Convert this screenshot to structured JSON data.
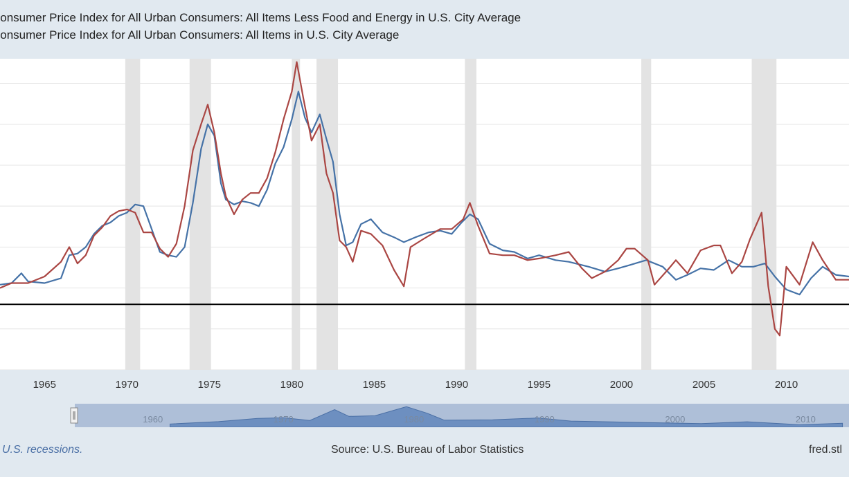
{
  "legend": {
    "items": [
      {
        "label": "Consumer Price Index for All Urban Consumers: All Items Less Food and Energy in U.S. City Average",
        "color": "#4572a7"
      },
      {
        "label": "Consumer Price Index for All Urban Consumers: All Items in U.S. City Average",
        "color": "#aa4643"
      }
    ]
  },
  "footer": {
    "recessions_note": "U.S. recessions.",
    "source": "Source: U.S. Bureau of Labor Statistics",
    "site": "fred.stl"
  },
  "navigator": {
    "labels": [
      "1960",
      "1970",
      "1980",
      "1990",
      "2000",
      "2010"
    ]
  },
  "chart_data": {
    "type": "line",
    "x_ticks": [
      "1965",
      "1970",
      "1975",
      "1980",
      "1985",
      "1990",
      "1995",
      "2000",
      "2005",
      "2010"
    ],
    "xlim": [
      1962.3,
      2013.8
    ],
    "ylim": [
      -4,
      15
    ],
    "recessions": [
      [
        1969.9,
        1970.8
      ],
      [
        1973.8,
        1975.1
      ],
      [
        1980.0,
        1980.5
      ],
      [
        1981.5,
        1982.8
      ],
      [
        1990.5,
        1991.2
      ],
      [
        2001.2,
        2001.8
      ],
      [
        2007.9,
        2009.4
      ]
    ],
    "series": [
      {
        "name": "Consumer Price Index for All Urban Consumers: All Items Less Food and Energy in U.S. City Average",
        "color": "#4572a7",
        "points": [
          [
            1962.3,
            1.2
          ],
          [
            1963,
            1.3
          ],
          [
            1963.6,
            1.9
          ],
          [
            1964,
            1.4
          ],
          [
            1965,
            1.3
          ],
          [
            1966,
            1.6
          ],
          [
            1966.5,
            3.0
          ],
          [
            1967,
            3.1
          ],
          [
            1967.5,
            3.5
          ],
          [
            1968,
            4.3
          ],
          [
            1968.5,
            4.8
          ],
          [
            1969,
            5.0
          ],
          [
            1969.5,
            5.4
          ],
          [
            1970,
            5.6
          ],
          [
            1970.5,
            6.1
          ],
          [
            1971,
            6.0
          ],
          [
            1971.5,
            4.6
          ],
          [
            1972,
            3.2
          ],
          [
            1972.5,
            3.0
          ],
          [
            1973,
            2.9
          ],
          [
            1973.5,
            3.5
          ],
          [
            1974,
            6.2
          ],
          [
            1974.5,
            9.5
          ],
          [
            1974.9,
            11.0
          ],
          [
            1975.3,
            10.3
          ],
          [
            1975.7,
            7.4
          ],
          [
            1976,
            6.4
          ],
          [
            1976.5,
            6.1
          ],
          [
            1977,
            6.3
          ],
          [
            1977.5,
            6.2
          ],
          [
            1978,
            6.0
          ],
          [
            1978.5,
            7.0
          ],
          [
            1979,
            8.6
          ],
          [
            1979.5,
            9.6
          ],
          [
            1980,
            11.3
          ],
          [
            1980.4,
            13.0
          ],
          [
            1980.8,
            11.4
          ],
          [
            1981.2,
            10.5
          ],
          [
            1981.7,
            11.6
          ],
          [
            1982.1,
            10.1
          ],
          [
            1982.5,
            8.7
          ],
          [
            1982.9,
            5.5
          ],
          [
            1983.3,
            3.6
          ],
          [
            1983.7,
            3.8
          ],
          [
            1984.2,
            4.9
          ],
          [
            1984.8,
            5.2
          ],
          [
            1985.5,
            4.4
          ],
          [
            1986.2,
            4.1
          ],
          [
            1986.8,
            3.8
          ],
          [
            1987.5,
            4.1
          ],
          [
            1988.3,
            4.4
          ],
          [
            1989,
            4.5
          ],
          [
            1989.7,
            4.3
          ],
          [
            1990.3,
            5.0
          ],
          [
            1990.8,
            5.5
          ],
          [
            1991.3,
            5.2
          ],
          [
            1992,
            3.7
          ],
          [
            1992.8,
            3.3
          ],
          [
            1993.5,
            3.2
          ],
          [
            1994.3,
            2.8
          ],
          [
            1995,
            3.0
          ],
          [
            1996,
            2.7
          ],
          [
            1996.8,
            2.6
          ],
          [
            1998,
            2.3
          ],
          [
            1999,
            2.0
          ],
          [
            1999.8,
            2.2
          ],
          [
            2000.5,
            2.4
          ],
          [
            2001.5,
            2.7
          ],
          [
            2002.5,
            2.3
          ],
          [
            2003.3,
            1.5
          ],
          [
            2004,
            1.8
          ],
          [
            2004.8,
            2.2
          ],
          [
            2005.6,
            2.1
          ],
          [
            2006.5,
            2.7
          ],
          [
            2007.3,
            2.3
          ],
          [
            2008,
            2.3
          ],
          [
            2008.7,
            2.5
          ],
          [
            2009.3,
            1.7
          ],
          [
            2010,
            0.9
          ],
          [
            2010.8,
            0.6
          ],
          [
            2011.5,
            1.6
          ],
          [
            2012.2,
            2.3
          ],
          [
            2013,
            1.8
          ],
          [
            2013.8,
            1.7
          ]
        ]
      },
      {
        "name": "Consumer Price Index for All Urban Consumers: All Items in U.S. City Average",
        "color": "#aa4643",
        "points": [
          [
            1962.3,
            1.0
          ],
          [
            1963,
            1.3
          ],
          [
            1964,
            1.3
          ],
          [
            1965,
            1.7
          ],
          [
            1966,
            2.6
          ],
          [
            1966.5,
            3.5
          ],
          [
            1967,
            2.5
          ],
          [
            1967.5,
            3.0
          ],
          [
            1968,
            4.2
          ],
          [
            1968.5,
            4.7
          ],
          [
            1969,
            5.4
          ],
          [
            1969.5,
            5.7
          ],
          [
            1970,
            5.8
          ],
          [
            1970.5,
            5.6
          ],
          [
            1971,
            4.4
          ],
          [
            1971.5,
            4.4
          ],
          [
            1972,
            3.4
          ],
          [
            1972.5,
            2.9
          ],
          [
            1973,
            3.7
          ],
          [
            1973.5,
            6.0
          ],
          [
            1974,
            9.4
          ],
          [
            1974.5,
            11.0
          ],
          [
            1974.9,
            12.2
          ],
          [
            1975.3,
            10.5
          ],
          [
            1975.7,
            8.0
          ],
          [
            1976,
            6.6
          ],
          [
            1976.5,
            5.5
          ],
          [
            1977,
            6.4
          ],
          [
            1977.5,
            6.8
          ],
          [
            1978,
            6.8
          ],
          [
            1978.5,
            7.7
          ],
          [
            1979,
            9.3
          ],
          [
            1979.5,
            11.3
          ],
          [
            1980,
            13.0
          ],
          [
            1980.3,
            14.8
          ],
          [
            1980.7,
            12.6
          ],
          [
            1981.2,
            10.0
          ],
          [
            1981.7,
            11.0
          ],
          [
            1982.1,
            8.0
          ],
          [
            1982.5,
            6.8
          ],
          [
            1982.9,
            3.9
          ],
          [
            1983.3,
            3.5
          ],
          [
            1983.7,
            2.6
          ],
          [
            1984.2,
            4.5
          ],
          [
            1984.8,
            4.3
          ],
          [
            1985.5,
            3.6
          ],
          [
            1986.2,
            2.1
          ],
          [
            1986.8,
            1.1
          ],
          [
            1987.2,
            3.5
          ],
          [
            1988,
            4.0
          ],
          [
            1989,
            4.6
          ],
          [
            1989.7,
            4.6
          ],
          [
            1990.4,
            5.2
          ],
          [
            1990.8,
            6.2
          ],
          [
            1991.3,
            4.8
          ],
          [
            1992,
            3.1
          ],
          [
            1992.8,
            3.0
          ],
          [
            1993.5,
            3.0
          ],
          [
            1994.3,
            2.7
          ],
          [
            1995,
            2.8
          ],
          [
            1996,
            3.0
          ],
          [
            1996.8,
            3.2
          ],
          [
            1997.6,
            2.2
          ],
          [
            1998.2,
            1.6
          ],
          [
            1999,
            2.0
          ],
          [
            1999.8,
            2.7
          ],
          [
            2000.3,
            3.4
          ],
          [
            2000.8,
            3.4
          ],
          [
            2001.6,
            2.7
          ],
          [
            2002,
            1.2
          ],
          [
            2002.8,
            2.1
          ],
          [
            2003.3,
            2.7
          ],
          [
            2004,
            1.9
          ],
          [
            2004.8,
            3.3
          ],
          [
            2005.6,
            3.6
          ],
          [
            2006,
            3.6
          ],
          [
            2006.7,
            1.9
          ],
          [
            2007.3,
            2.6
          ],
          [
            2007.8,
            4.0
          ],
          [
            2008.5,
            5.6
          ],
          [
            2008.9,
            1.1
          ],
          [
            2009.3,
            -1.5
          ],
          [
            2009.6,
            -1.9
          ],
          [
            2010,
            2.3
          ],
          [
            2010.8,
            1.2
          ],
          [
            2011.6,
            3.8
          ],
          [
            2012.2,
            2.7
          ],
          [
            2013,
            1.5
          ],
          [
            2013.8,
            1.5
          ]
        ]
      }
    ],
    "navigator_series": [
      [
        1962.3,
        1.2
      ],
      [
        1966,
        2.8
      ],
      [
        1969,
        5.0
      ],
      [
        1971,
        5.5
      ],
      [
        1973,
        3.6
      ],
      [
        1974.9,
        11.0
      ],
      [
        1976,
        6.4
      ],
      [
        1978,
        6.8
      ],
      [
        1980.4,
        13.0
      ],
      [
        1982,
        8.5
      ],
      [
        1983.3,
        3.8
      ],
      [
        1987,
        4.1
      ],
      [
        1990.5,
        5.3
      ],
      [
        1993,
        3.2
      ],
      [
        1998,
        2.3
      ],
      [
        2003,
        1.5
      ],
      [
        2006.5,
        2.7
      ],
      [
        2010.5,
        0.7
      ],
      [
        2013.8,
        1.7
      ]
    ]
  }
}
